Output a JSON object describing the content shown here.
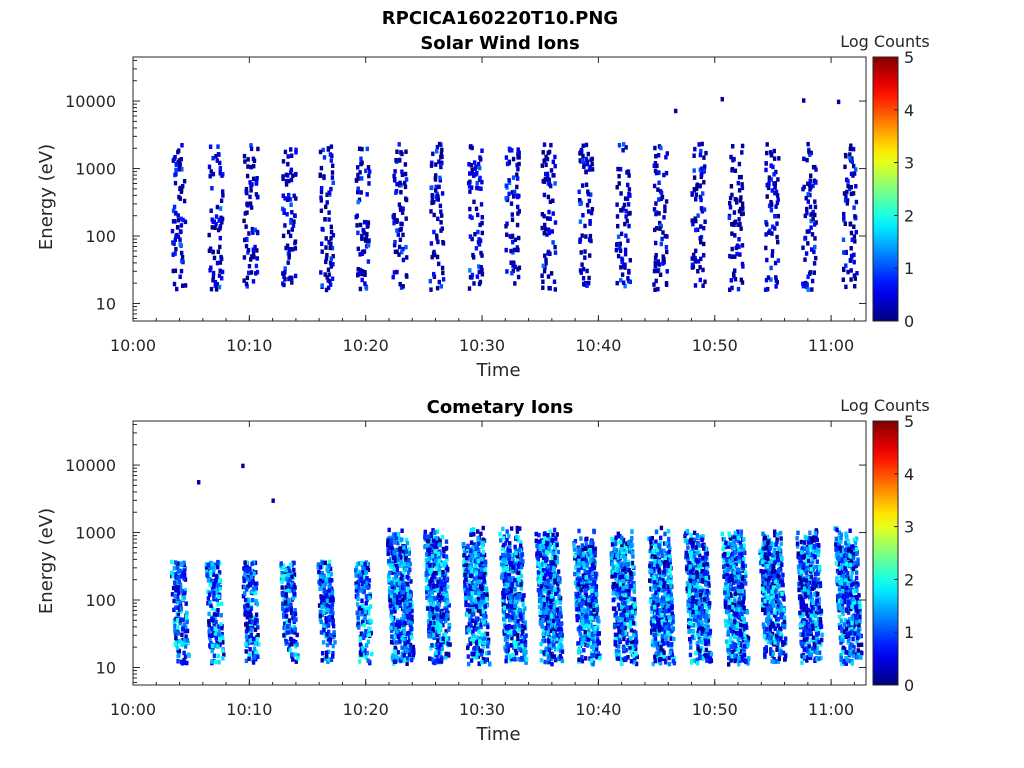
{
  "figure_title": "RPCICA160220T10.PNG",
  "colorbar": {
    "label": "Log Counts",
    "min": 0,
    "max": 5,
    "ticks": [
      "0",
      "1",
      "2",
      "3",
      "4",
      "5"
    ],
    "colormap": "jet"
  },
  "chart_data": [
    {
      "type": "heatmap",
      "title": "Solar Wind Ions",
      "xlabel": "Time",
      "ylabel": "Energy (eV)",
      "xlim": [
        "10:00",
        "11:03"
      ],
      "ylim": [
        5.5,
        45000
      ],
      "yscale": "log",
      "xticks": [
        "10:00",
        "10:10",
        "10:20",
        "10:30",
        "10:40",
        "10:50",
        "11:00"
      ],
      "yticks": [
        "10",
        "100",
        "1000",
        "10000"
      ],
      "colorbar_label": "Log Counts",
      "burst_times": [
        "10:03.8",
        "10:07.0",
        "10:10.0",
        "10:13.3",
        "10:16.5",
        "10:19.6",
        "10:22.8",
        "10:26.0",
        "10:29.3",
        "10:32.5",
        "10:35.6",
        "10:38.8",
        "10:42.0",
        "10:45.2",
        "10:48.5",
        "10:51.7",
        "10:54.8",
        "10:58.0",
        "11:01.5"
      ],
      "energy_range_eV": [
        17,
        2500
      ],
      "peak_log_counts": 1.3,
      "sparse_high_energy_points": [
        {
          "time": "10:46.5",
          "energy": 7700
        },
        {
          "time": "10:50.5",
          "energy": 11500
        },
        {
          "time": "10:57.5",
          "energy": 11000
        },
        {
          "time": "11:00.5",
          "energy": 10500
        }
      ]
    },
    {
      "type": "heatmap",
      "title": "Cometary Ions",
      "xlabel": "Time",
      "ylabel": "Energy (eV)",
      "xlim": [
        "10:00",
        "11:03"
      ],
      "ylim": [
        5.5,
        45000
      ],
      "yscale": "log",
      "xticks": [
        "10:00",
        "10:10",
        "10:20",
        "10:30",
        "10:40",
        "10:50",
        "11:00"
      ],
      "yticks": [
        "10",
        "100",
        "1000",
        "10000"
      ],
      "colorbar_label": "Log Counts",
      "burst_times": [
        "10:04.0",
        "10:07.0",
        "10:10.1",
        "10:13.4",
        "10:16.6",
        "10:19.8",
        "10:23.0",
        "10:26.2",
        "10:29.5",
        "10:32.7",
        "10:35.8",
        "10:39.0",
        "10:42.2",
        "10:45.4",
        "10:48.6",
        "10:51.8",
        "10:55.0",
        "10:58.2",
        "11:01.5"
      ],
      "energy_range_eV": [
        12,
        1300
      ],
      "peak_log_counts": 2.0,
      "sparse_high_energy_points": [
        {
          "time": "10:05.5",
          "energy": 6000
        },
        {
          "time": "10:09.3",
          "energy": 10500
        },
        {
          "time": "10:11.9",
          "energy": 3200
        }
      ]
    }
  ]
}
